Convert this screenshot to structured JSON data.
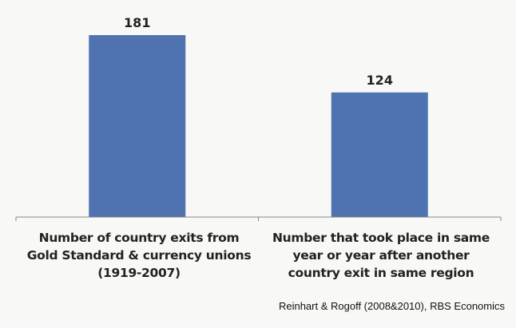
{
  "chart_data": {
    "type": "bar",
    "categories": [
      "Number of country exits from\nGold Standard & currency unions\n(1919-2007)",
      "Number that took place in same\nyear or year after another\ncountry exit in same region"
    ],
    "values": [
      181,
      124
    ],
    "data_labels": [
      "181",
      "124"
    ],
    "ylim": [
      0,
      181
    ],
    "grid": false,
    "bar_color": "#4f72b0",
    "source": "Reinhart & Rogoff (2008&2010), RBS Economics"
  }
}
